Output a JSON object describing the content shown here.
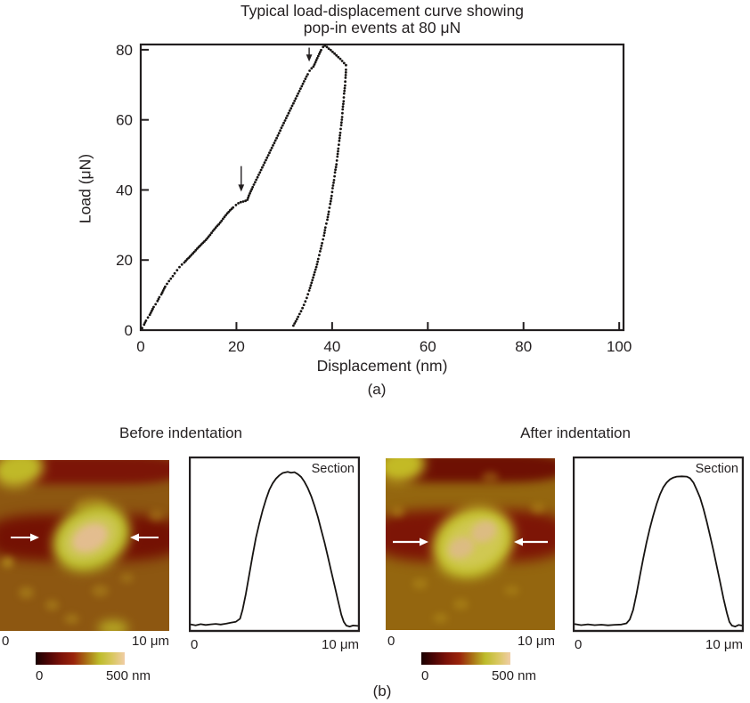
{
  "figure": {
    "text_color": "#231f20",
    "dot_color": "#171412",
    "panel_a_label": "(a)",
    "panel_b_label": "(b)"
  },
  "chart_data": [
    {
      "id": "load_displacement",
      "type": "scatter",
      "title_lines": [
        "Typical load-displacement curve showing",
        "pop-in events at 80 μN"
      ],
      "xlabel": "Displacement (nm)",
      "ylabel": "Load (μN)",
      "xlim": [
        0,
        100.9
      ],
      "ylim": [
        0,
        81.5
      ],
      "xticks": [
        0,
        20,
        40,
        60,
        80,
        100
      ],
      "yticks": [
        0,
        20,
        40,
        60,
        80
      ],
      "grid": false,
      "series": [
        {
          "name": "loading",
          "points": [
            [
              0.3,
              0.6
            ],
            [
              0.7,
              1.6
            ],
            [
              1.1,
              2.7
            ],
            [
              1.5,
              3.6
            ],
            [
              1.9,
              4.4
            ],
            [
              2.3,
              5.5
            ],
            [
              2.7,
              6.6
            ],
            [
              3.1,
              7.4
            ],
            [
              3.5,
              8.3
            ],
            [
              3.9,
              9.4
            ],
            [
              4.3,
              10.2
            ],
            [
              4.7,
              11.3
            ],
            [
              5.1,
              12.4
            ],
            [
              5.5,
              13.2
            ],
            [
              5.9,
              14.0
            ],
            [
              6.3,
              14.7
            ],
            [
              6.7,
              15.4
            ],
            [
              7.1,
              16.2
            ],
            [
              7.6,
              17.1
            ],
            [
              8.1,
              18.0
            ],
            [
              8.6,
              18.7
            ],
            [
              9.1,
              19.3
            ],
            [
              9.7,
              20.2
            ],
            [
              10.3,
              21.0
            ],
            [
              10.9,
              21.9
            ],
            [
              11.5,
              22.8
            ],
            [
              12.1,
              23.7
            ],
            [
              12.7,
              24.5
            ],
            [
              13.3,
              25.3
            ],
            [
              13.9,
              26.2
            ],
            [
              14.5,
              27.2
            ],
            [
              15.1,
              28.3
            ],
            [
              15.7,
              29.3
            ],
            [
              16.3,
              30.2
            ],
            [
              16.9,
              31.2
            ],
            [
              17.5,
              32.3
            ],
            [
              18.1,
              33.3
            ],
            [
              18.7,
              34.2
            ],
            [
              19.3,
              35.0
            ],
            [
              19.9,
              35.7
            ],
            [
              20.4,
              36.2
            ],
            [
              20.9,
              36.5
            ],
            [
              21.4,
              36.7
            ],
            [
              21.9,
              36.9
            ],
            [
              22.3,
              37.2
            ],
            [
              22.6,
              38.4
            ],
            [
              23.0,
              39.6
            ],
            [
              23.4,
              40.8
            ],
            [
              23.9,
              42.2
            ],
            [
              24.4,
              43.6
            ],
            [
              24.9,
              45.0
            ],
            [
              25.4,
              46.4
            ],
            [
              25.9,
              47.8
            ],
            [
              26.4,
              49.2
            ],
            [
              26.9,
              50.6
            ],
            [
              27.4,
              52.0
            ],
            [
              27.9,
              53.4
            ],
            [
              28.4,
              54.8
            ],
            [
              28.9,
              56.2
            ],
            [
              29.4,
              57.7
            ],
            [
              29.9,
              59.1
            ],
            [
              30.4,
              60.5
            ],
            [
              30.9,
              61.9
            ],
            [
              31.4,
              63.3
            ],
            [
              31.9,
              64.7
            ],
            [
              32.4,
              66.1
            ],
            [
              32.9,
              67.5
            ],
            [
              33.4,
              68.9
            ],
            [
              33.9,
              70.3
            ],
            [
              34.4,
              71.7
            ],
            [
              34.9,
              73.0
            ],
            [
              35.3,
              74.0
            ],
            [
              35.7,
              74.7
            ],
            [
              36.1,
              75.2
            ],
            [
              36.5,
              76.4
            ],
            [
              36.9,
              77.6
            ],
            [
              37.3,
              78.8
            ],
            [
              37.7,
              79.9
            ],
            [
              38.1,
              80.8
            ],
            [
              38.5,
              81.2
            ],
            [
              38.9,
              80.8
            ],
            [
              39.3,
              80.3
            ],
            [
              39.7,
              79.9
            ],
            [
              40.1,
              79.4
            ],
            [
              40.5,
              78.9
            ],
            [
              40.9,
              78.4
            ],
            [
              41.3,
              77.9
            ],
            [
              41.7,
              77.4
            ],
            [
              42.1,
              76.8
            ],
            [
              42.5,
              76.2
            ],
            [
              42.9,
              75.6
            ]
          ]
        },
        {
          "name": "unloading",
          "points": [
            [
              42.9,
              74.3
            ],
            [
              42.8,
              72.0
            ],
            [
              42.7,
              69.8
            ],
            [
              42.5,
              67.5
            ],
            [
              42.4,
              65.3
            ],
            [
              42.2,
              63.0
            ],
            [
              42.1,
              60.8
            ],
            [
              41.9,
              58.5
            ],
            [
              41.7,
              56.3
            ],
            [
              41.5,
              54.0
            ],
            [
              41.3,
              51.8
            ],
            [
              41.1,
              49.5
            ],
            [
              40.9,
              47.3
            ],
            [
              40.6,
              45.0
            ],
            [
              40.4,
              42.8
            ],
            [
              40.1,
              40.5
            ],
            [
              39.9,
              38.3
            ],
            [
              39.6,
              36.0
            ],
            [
              39.3,
              33.8
            ],
            [
              39.0,
              31.5
            ],
            [
              38.6,
              29.3
            ],
            [
              38.3,
              27.0
            ],
            [
              37.9,
              24.8
            ],
            [
              37.5,
              22.5
            ],
            [
              37.1,
              20.3
            ],
            [
              36.7,
              18.0
            ],
            [
              36.2,
              15.8
            ],
            [
              35.7,
              13.5
            ],
            [
              35.2,
              11.3
            ],
            [
              34.7,
              9.2
            ],
            [
              34.1,
              7.2
            ],
            [
              33.5,
              5.4
            ],
            [
              32.9,
              3.8
            ],
            [
              32.4,
              2.5
            ],
            [
              31.9,
              1.3
            ]
          ]
        }
      ],
      "annotations": [
        {
          "type": "arrow-down",
          "x": 21.0,
          "y_tip": 39.5,
          "y_tail": 46.8
        },
        {
          "type": "arrow-down",
          "x": 35.2,
          "y_tip": 76.6,
          "y_tail": 80.6
        }
      ]
    },
    {
      "id": "section_before",
      "type": "line",
      "label": "Section",
      "x_start_label": "0",
      "x_end_label": "10 μm",
      "xlim": [
        0,
        10
      ],
      "ylim": [
        0,
        100
      ],
      "points": [
        [
          0,
          3
        ],
        [
          0.3,
          2.4
        ],
        [
          0.6,
          3.1
        ],
        [
          0.9,
          2.6
        ],
        [
          1.2,
          3.0
        ],
        [
          1.5,
          3.3
        ],
        [
          1.8,
          2.9
        ],
        [
          2.1,
          3.4
        ],
        [
          2.4,
          4.0
        ],
        [
          2.7,
          4.6
        ],
        [
          2.95,
          6.5
        ],
        [
          3.1,
          12
        ],
        [
          3.3,
          22
        ],
        [
          3.5,
          34
        ],
        [
          3.7,
          46
        ],
        [
          3.9,
          57
        ],
        [
          4.1,
          66
        ],
        [
          4.3,
          74
        ],
        [
          4.5,
          81
        ],
        [
          4.7,
          87
        ],
        [
          4.9,
          91
        ],
        [
          5.1,
          94
        ],
        [
          5.3,
          96
        ],
        [
          5.5,
          97.5
        ],
        [
          5.8,
          98.2
        ],
        [
          6.0,
          97.6
        ],
        [
          6.2,
          98.0
        ],
        [
          6.4,
          96.8
        ],
        [
          6.6,
          95
        ],
        [
          6.8,
          92
        ],
        [
          7.0,
          88
        ],
        [
          7.2,
          83
        ],
        [
          7.4,
          77
        ],
        [
          7.6,
          70
        ],
        [
          7.8,
          62
        ],
        [
          8.0,
          54
        ],
        [
          8.2,
          45
        ],
        [
          8.4,
          36
        ],
        [
          8.6,
          27
        ],
        [
          8.8,
          18
        ],
        [
          9.0,
          9
        ],
        [
          9.15,
          4.5
        ],
        [
          9.3,
          2.2
        ],
        [
          9.5,
          1.6
        ],
        [
          9.7,
          2.3
        ],
        [
          10,
          2.0
        ]
      ]
    },
    {
      "id": "section_after",
      "type": "line",
      "label": "Section",
      "x_start_label": "0",
      "x_end_label": "10 μm",
      "xlim": [
        0,
        10
      ],
      "ylim": [
        0,
        100
      ],
      "points": [
        [
          0,
          3.2
        ],
        [
          0.4,
          2.5
        ],
        [
          0.8,
          3.0
        ],
        [
          1.2,
          2.5
        ],
        [
          1.6,
          2.8
        ],
        [
          2.0,
          2.4
        ],
        [
          2.4,
          2.7
        ],
        [
          2.8,
          2.9
        ],
        [
          3.1,
          3.6
        ],
        [
          3.3,
          6
        ],
        [
          3.5,
          12
        ],
        [
          3.7,
          22
        ],
        [
          3.9,
          33
        ],
        [
          4.1,
          44
        ],
        [
          4.3,
          54
        ],
        [
          4.5,
          63
        ],
        [
          4.7,
          71
        ],
        [
          4.9,
          78
        ],
        [
          5.1,
          84
        ],
        [
          5.3,
          88.5
        ],
        [
          5.5,
          91.5
        ],
        [
          5.7,
          93.5
        ],
        [
          5.9,
          94.6
        ],
        [
          6.1,
          95.2
        ],
        [
          6.4,
          95.4
        ],
        [
          6.7,
          95.2
        ],
        [
          6.9,
          94.2
        ],
        [
          7.1,
          91.5
        ],
        [
          7.3,
          87
        ],
        [
          7.5,
          82
        ],
        [
          7.7,
          75
        ],
        [
          7.9,
          67
        ],
        [
          8.1,
          58
        ],
        [
          8.3,
          49
        ],
        [
          8.5,
          39
        ],
        [
          8.7,
          29
        ],
        [
          8.9,
          19
        ],
        [
          9.1,
          10
        ],
        [
          9.25,
          4.5
        ],
        [
          9.4,
          2.2
        ],
        [
          9.6,
          1.6
        ],
        [
          9.8,
          2.6
        ],
        [
          10,
          2.2
        ]
      ]
    }
  ],
  "panel_b": {
    "before": {
      "title": "Before indentation",
      "scale_start": "0",
      "scale_end": "10 μm",
      "colorbar_min": "0",
      "colorbar_max": "500 nm"
    },
    "after": {
      "title": "After indentation",
      "scale_start": "0",
      "scale_end": "10 μm",
      "colorbar_min": "0",
      "colorbar_max": "500 nm"
    },
    "colorbar_stops": [
      "#190101",
      "#4c0505",
      "#7c1208",
      "#9a240b",
      "#a96f15",
      "#bdbb2b",
      "#d8c75e",
      "#f0cda6"
    ],
    "arrow_color": "#ffffff",
    "afm_before": {
      "bg": "#8d5711",
      "band": "#7c1507",
      "band2": "#741103",
      "corner": "#c0b928",
      "blob": "#bcbd2a",
      "blobmid": "#cdc654",
      "core": "#e3bd8f",
      "speckle": "#b5901e"
    },
    "afm_after": {
      "bg": "#94660f",
      "band": "#6e1003",
      "band2": "#7d1506",
      "corner": "#c3ba25",
      "blob": "#c3c02c",
      "blobmid": "#d0c852",
      "core": "#dcbc82",
      "speckle": "#b8941c"
    }
  }
}
